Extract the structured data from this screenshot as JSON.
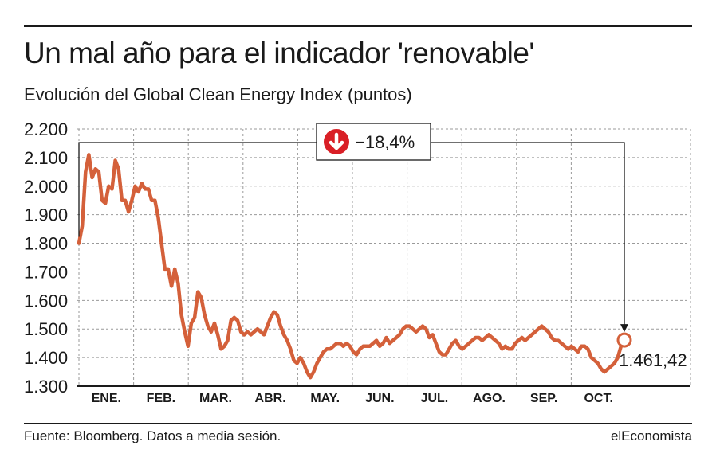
{
  "header": {
    "title": "Un mal año para el indicador 'renovable'",
    "subtitle": "Evolución del Global Clean Energy Index (puntos)"
  },
  "footer": {
    "source": "Fuente: Bloomberg. Datos a media sesión.",
    "brand": "elEconomista"
  },
  "colors": {
    "line": "#d4603a",
    "down_badge": "#d91f26",
    "grid": "#9a9a9a"
  },
  "chart_data": {
    "type": "line",
    "title": "Evolución del Global Clean Energy Index (puntos)",
    "ylim": [
      1300,
      2200
    ],
    "yticks": [
      1300,
      1400,
      1500,
      1600,
      1700,
      1800,
      1900,
      2000,
      2100,
      2200
    ],
    "ytick_labels": [
      "1.300",
      "1.400",
      "1.500",
      "1.600",
      "1.700",
      "1.800",
      "1.900",
      "2.000",
      "2.100",
      "2.200"
    ],
    "months": [
      "ENE.",
      "FEB.",
      "MAR.",
      "ABR.",
      "MAY.",
      "JUN.",
      "JUL.",
      "AGO.",
      "SEP.",
      "OCT."
    ],
    "grid": true,
    "series": [
      {
        "values": [
          1800,
          1860,
          2050,
          2110,
          2030,
          2060,
          2050,
          1950,
          1940,
          2000,
          1990,
          2090,
          2060,
          1950,
          1950,
          1910,
          1950,
          2000,
          1980,
          2010,
          1990,
          1990,
          1950,
          1950,
          1890,
          1800,
          1710,
          1710,
          1650,
          1710,
          1660,
          1550,
          1490,
          1440,
          1520,
          1540,
          1630,
          1610,
          1550,
          1510,
          1490,
          1520,
          1480,
          1430,
          1440,
          1460,
          1530,
          1540,
          1530,
          1490,
          1480,
          1490,
          1480,
          1490,
          1500,
          1490,
          1480,
          1510,
          1540,
          1560,
          1550,
          1510,
          1480,
          1460,
          1430,
          1390,
          1380,
          1400,
          1380,
          1350,
          1330,
          1350,
          1380,
          1400,
          1420,
          1430,
          1430,
          1440,
          1450,
          1450,
          1440,
          1450,
          1440,
          1420,
          1410,
          1430,
          1440,
          1440,
          1440,
          1450,
          1460,
          1440,
          1450,
          1470,
          1450,
          1460,
          1470,
          1480,
          1500,
          1510,
          1510,
          1500,
          1490,
          1500,
          1510,
          1500,
          1470,
          1480,
          1450,
          1420,
          1410,
          1410,
          1430,
          1450,
          1460,
          1440,
          1430,
          1440,
          1450,
          1460,
          1470,
          1470,
          1460,
          1470,
          1480,
          1470,
          1460,
          1450,
          1430,
          1440,
          1430,
          1430,
          1450,
          1460,
          1470,
          1460,
          1470,
          1480,
          1490,
          1500,
          1510,
          1500,
          1490,
          1470,
          1460,
          1460,
          1450,
          1440,
          1430,
          1440,
          1430,
          1420,
          1440,
          1440,
          1430,
          1400,
          1390,
          1380,
          1360,
          1350,
          1360,
          1370,
          1380,
          1400,
          1440,
          1461.42
        ]
      }
    ],
    "annotations": {
      "change_label": "−18,4%",
      "last_value_label": "1.461,42"
    }
  }
}
